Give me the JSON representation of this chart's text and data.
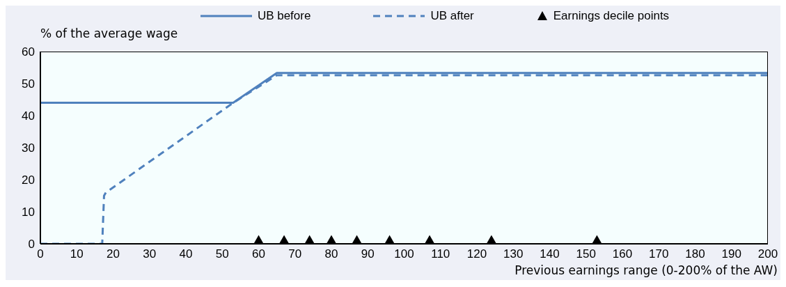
{
  "chart_data": {
    "type": "line",
    "xlabel": "Previous earnings range (0-200% of the AW)",
    "ylabel": "% of the average wage",
    "xlim": [
      0,
      200
    ],
    "xticks": [
      0,
      10,
      20,
      30,
      40,
      50,
      60,
      70,
      80,
      90,
      100,
      110,
      120,
      130,
      140,
      150,
      160,
      170,
      180,
      190,
      200
    ],
    "ylim": [
      0,
      60
    ],
    "yticks": [
      0,
      10,
      20,
      30,
      40,
      50,
      60
    ],
    "grid": false,
    "legend": "top",
    "series": [
      {
        "name": "UB before",
        "color": "#4f81bd",
        "line_style": "solid",
        "marker": "none",
        "x": [
          0,
          53,
          65,
          200
        ],
        "values": [
          44,
          44,
          53.3,
          53.3
        ]
      },
      {
        "name": "UB after",
        "color": "#4f81bd",
        "line_style": "dashed",
        "marker": "none",
        "x": [
          0,
          17,
          17.5,
          18,
          53,
          65,
          200
        ],
        "values": [
          0,
          0,
          15,
          16,
          44,
          52.6,
          52.6
        ]
      },
      {
        "name": "Earnings decile points",
        "type": "scatter",
        "color": "#000000",
        "marker": "triangle",
        "x": [
          60,
          67,
          74,
          80,
          87,
          96,
          107,
          124,
          153
        ],
        "values": [
          0,
          0,
          0,
          0,
          0,
          0,
          0,
          0,
          0
        ]
      }
    ]
  }
}
